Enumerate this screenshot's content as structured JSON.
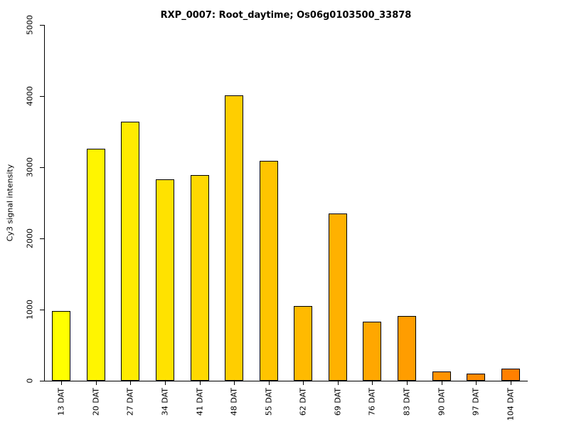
{
  "chart_data": {
    "type": "bar",
    "title": "RXP_0007: Root_daytime; Os06g0103500_33878",
    "ylabel": "Cy3 signal intensity",
    "xlabel": "",
    "categories": [
      "13 DAT",
      "20 DAT",
      "27 DAT",
      "34 DAT",
      "41 DAT",
      "48 DAT",
      "55 DAT",
      "62 DAT",
      "69 DAT",
      "76 DAT",
      "83 DAT",
      "90 DAT",
      "97 DAT",
      "104 DAT"
    ],
    "values": [
      980,
      3260,
      3640,
      2830,
      2890,
      4010,
      3090,
      1050,
      2350,
      830,
      910,
      130,
      105,
      170
    ],
    "colors": [
      "#FFFF00",
      "#FFF500",
      "#FFEB00",
      "#FFE200",
      "#FFD800",
      "#FFCE00",
      "#FFC400",
      "#FFBA00",
      "#FFB100",
      "#FFA700",
      "#FF9D00",
      "#FF9300",
      "#FF8A00",
      "#FF8000"
    ],
    "bar_border_color": "#000000",
    "ylim": [
      0,
      5000
    ],
    "yticks": [
      "0",
      "1000",
      "2000",
      "3000",
      "4000",
      "5000"
    ],
    "grid": false,
    "legend": false,
    "x_tick_label_rotation": 90,
    "y_tick_label_rotation": 90
  }
}
